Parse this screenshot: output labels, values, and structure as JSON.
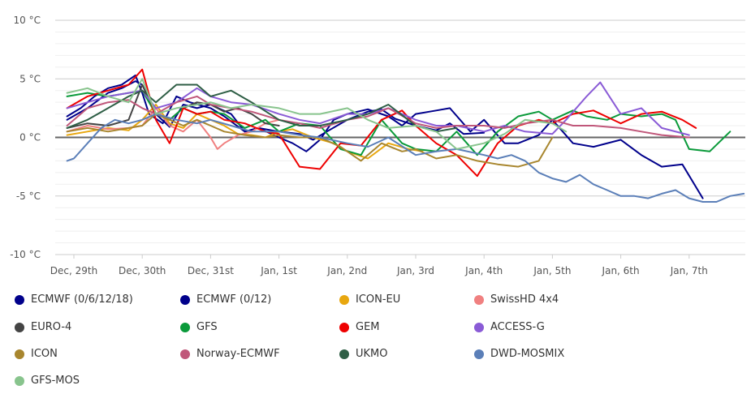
{
  "chart_data": {
    "type": "line",
    "title": "",
    "xlabel": "",
    "ylabel": "",
    "ylim": [
      -10,
      10
    ],
    "y_ticks": [
      "10 °C",
      "5 °C",
      "0 °C",
      "-5 °C",
      "-10 °C"
    ],
    "x_ticks": [
      "Dec, 29th",
      "Dec, 30th",
      "Dec, 31st",
      "Jan, 1st",
      "Jan, 2nd",
      "Jan, 3rd",
      "Jan, 4th",
      "Jan, 5th",
      "Jan, 6th",
      "Jan, 7th"
    ],
    "x_unit": "days from Dec 29th 00:00",
    "grid": true,
    "legend_position": "bottom",
    "series": [
      {
        "name": "ECMWF (0/6/12/18)",
        "color": "#00008b",
        "x": [
          -0.1,
          0.1,
          0.3,
          0.5,
          0.7,
          0.9,
          1.0,
          1.1,
          1.3,
          1.5,
          1.7,
          2.0,
          2.2,
          2.5,
          2.7,
          3.0,
          3.3,
          3.5,
          3.7,
          4.0,
          4.3,
          4.5,
          4.7,
          5.0,
          5.3,
          5.5,
          5.7,
          6.0
        ],
        "y": [
          1.8,
          2.5,
          3.5,
          4.2,
          4.5,
          5.3,
          3.8,
          2.0,
          1.2,
          3.5,
          3.0,
          2.5,
          1.8,
          0.5,
          0.8,
          0.5,
          0.3,
          -0.2,
          0.5,
          1.5,
          2.2,
          2.4,
          1.6,
          1.0,
          0.6,
          1.2,
          0.3,
          0.4
        ]
      },
      {
        "name": "ECMWF (0/12)",
        "color": "#00008b",
        "x": [
          -0.1,
          0.2,
          0.5,
          0.7,
          0.9,
          1.0,
          1.2,
          1.4,
          1.6,
          1.8,
          2.0,
          2.3,
          2.5,
          2.7,
          3.0,
          3.2,
          3.4,
          3.6,
          3.8,
          4.0,
          4.3,
          4.6,
          4.8,
          5.0,
          5.3,
          5.5,
          5.8,
          6.0,
          6.3,
          6.5,
          6.8,
          7.0,
          7.3,
          7.6,
          8.0,
          8.3,
          8.6,
          8.9,
          9.2
        ],
        "y": [
          1.5,
          2.5,
          3.8,
          4.2,
          4.8,
          4.5,
          2.0,
          0.9,
          2.8,
          2.5,
          2.8,
          2.0,
          0.5,
          0.8,
          0.0,
          -0.5,
          -1.2,
          -0.2,
          1.5,
          2.0,
          2.4,
          1.8,
          1.0,
          2.0,
          2.3,
          2.5,
          0.5,
          1.5,
          -0.5,
          -0.5,
          0.2,
          1.5,
          -0.5,
          -0.8,
          -0.2,
          -1.5,
          -2.5,
          -2.3,
          -5.2
        ]
      },
      {
        "name": "ICON-EU",
        "color": "#e8a70f",
        "x": [
          -0.1,
          0.2,
          0.5,
          0.8,
          1.0,
          1.2,
          1.4,
          1.6,
          1.8,
          2.0,
          2.2,
          2.4,
          2.6,
          2.8,
          3.0,
          3.2,
          3.5,
          3.8,
          4.0,
          4.3,
          4.6,
          4.9,
          5.1
        ],
        "y": [
          0.2,
          0.5,
          0.8,
          0.6,
          1.5,
          2.8,
          1.2,
          0.8,
          2.0,
          1.5,
          1.0,
          0.3,
          0.2,
          0.0,
          0.5,
          0.7,
          0.0,
          -0.5,
          -1.2,
          -1.8,
          -0.5,
          -1.0,
          -1.2
        ]
      },
      {
        "name": "SwissHD 4x4",
        "color": "#f08080",
        "x": [
          -0.1,
          0.2,
          0.5,
          0.8,
          1.0,
          1.2,
          1.4,
          1.6,
          1.8,
          2.0,
          2.1,
          2.2,
          2.4,
          2.6,
          2.8,
          3.0
        ],
        "y": [
          0.5,
          1.0,
          0.7,
          0.8,
          1.0,
          2.5,
          1.0,
          0.5,
          1.5,
          0.0,
          -1.0,
          -0.5,
          0.2,
          0.5,
          1.2,
          1.5
        ]
      },
      {
        "name": "EURO-4",
        "color": "#444444",
        "x": [
          -0.1,
          0.2,
          0.5,
          0.8,
          1.0,
          1.2,
          1.4,
          1.6,
          1.8,
          2.0,
          2.2,
          2.4,
          2.6,
          2.8,
          3.0
        ],
        "y": [
          0.8,
          1.2,
          1.0,
          1.5,
          4.5,
          2.0,
          1.5,
          2.5,
          3.0,
          2.8,
          2.2,
          2.5,
          2.0,
          1.2,
          1.0
        ]
      },
      {
        "name": "GFS",
        "color": "#0a9a3a",
        "x": [
          -0.1,
          0.2,
          0.5,
          0.8,
          1.0,
          1.2,
          1.4,
          1.6,
          1.8,
          2.0,
          2.2,
          2.5,
          2.8,
          3.0,
          3.3,
          3.6,
          3.9,
          4.2,
          4.5,
          4.8,
          5.0,
          5.3,
          5.6,
          5.9,
          6.2,
          6.5,
          6.8,
          7.0,
          7.3,
          7.5,
          7.8,
          8.0,
          8.3,
          8.6,
          8.8,
          9.0,
          9.3,
          9.6
        ],
        "y": [
          3.5,
          3.8,
          3.5,
          3.8,
          4.0,
          2.0,
          1.5,
          2.5,
          2.0,
          2.2,
          2.0,
          0.8,
          1.5,
          0.5,
          1.2,
          1.0,
          -1.0,
          -1.5,
          1.5,
          -0.5,
          -1.0,
          -1.2,
          0.5,
          -1.5,
          0.5,
          1.8,
          2.2,
          1.5,
          2.3,
          1.8,
          1.5,
          2.0,
          1.8,
          2.0,
          1.5,
          -1.0,
          -1.2,
          0.5
        ]
      },
      {
        "name": "GEM",
        "color": "#ee0000",
        "x": [
          -0.1,
          0.2,
          0.5,
          0.8,
          1.0,
          1.2,
          1.4,
          1.6,
          1.8,
          2.0,
          2.2,
          2.5,
          2.8,
          3.0,
          3.3,
          3.6,
          3.9,
          4.2,
          4.5,
          4.8,
          5.0,
          5.3,
          5.6,
          5.9,
          6.2,
          6.5,
          6.8,
          7.0,
          7.3,
          7.6,
          8.0,
          8.3,
          8.6,
          8.9,
          9.1
        ],
        "y": [
          2.5,
          3.5,
          4.0,
          4.5,
          5.8,
          1.5,
          -0.5,
          2.5,
          2.0,
          2.2,
          1.5,
          1.2,
          0.5,
          0.3,
          -2.5,
          -2.7,
          -0.5,
          -0.7,
          1.5,
          2.3,
          1.0,
          -0.5,
          -1.5,
          -3.3,
          -0.5,
          1.0,
          1.5,
          1.2,
          2.0,
          2.3,
          1.2,
          2.0,
          2.2,
          1.5,
          0.8
        ]
      },
      {
        "name": "ACCESS-G",
        "color": "#8a5bd6",
        "x": [
          -0.1,
          0.2,
          0.5,
          0.8,
          1.0,
          1.2,
          1.5,
          1.8,
          2.0,
          2.3,
          2.6,
          3.0,
          3.3,
          3.6,
          4.0,
          4.3,
          4.6,
          5.0,
          5.3,
          5.6,
          6.0,
          6.3,
          6.6,
          7.0,
          7.2,
          7.5,
          7.7,
          8.0,
          8.3,
          8.6,
          9.0
        ],
        "y": [
          2.5,
          3.0,
          3.5,
          3.8,
          4.0,
          2.5,
          3.0,
          4.2,
          3.5,
          3.0,
          2.8,
          2.0,
          1.5,
          1.2,
          2.0,
          2.0,
          2.5,
          1.5,
          1.0,
          1.0,
          0.5,
          1.0,
          0.5,
          0.3,
          1.5,
          3.5,
          4.7,
          2.0,
          2.5,
          0.8,
          0.2
        ]
      },
      {
        "name": "ICON",
        "color": "#a8862e",
        "x": [
          -0.1,
          0.2,
          0.5,
          0.8,
          1.0,
          1.2,
          1.4,
          1.6,
          1.8,
          2.0,
          2.2,
          2.5,
          2.8,
          3.0,
          3.3,
          3.6,
          3.9,
          4.2,
          4.5,
          4.8,
          5.0,
          5.3,
          5.6,
          5.9,
          6.2,
          6.5,
          6.8,
          7.0
        ],
        "y": [
          0.5,
          0.8,
          0.5,
          0.8,
          1.0,
          2.0,
          1.5,
          1.0,
          1.5,
          1.0,
          0.5,
          0.2,
          0.0,
          0.2,
          0.0,
          0.0,
          -0.8,
          -2.0,
          -0.5,
          -1.2,
          -1.0,
          -1.8,
          -1.5,
          -2.0,
          -2.3,
          -2.5,
          -2.0,
          0.0
        ]
      },
      {
        "name": "Norway-ECMWF",
        "color": "#c0577a",
        "x": [
          -0.1,
          0.2,
          0.5,
          0.8,
          1.0,
          1.2,
          1.5,
          1.8,
          2.0,
          2.3,
          2.6,
          3.0,
          3.3,
          3.6,
          4.0,
          4.3,
          4.6,
          5.0,
          5.3,
          5.6,
          6.0,
          6.3,
          6.6,
          7.0,
          7.3,
          7.6,
          8.0,
          8.3,
          8.6,
          9.0
        ],
        "y": [
          1.0,
          2.5,
          3.0,
          3.2,
          2.5,
          2.0,
          3.0,
          3.5,
          2.8,
          2.5,
          2.2,
          1.5,
          1.2,
          0.8,
          1.5,
          1.8,
          2.5,
          1.2,
          0.8,
          1.0,
          1.0,
          0.8,
          1.2,
          1.5,
          1.0,
          1.0,
          0.8,
          0.5,
          0.2,
          0.0
        ]
      },
      {
        "name": "UKMO",
        "color": "#2e5e45",
        "x": [
          -0.1,
          0.2,
          0.5,
          0.8,
          1.0,
          1.2,
          1.5,
          1.8,
          2.0,
          2.3,
          2.6,
          3.0,
          3.3,
          3.6,
          4.0,
          4.3,
          4.6,
          5.0,
          5.3,
          5.6
        ],
        "y": [
          0.8,
          1.5,
          2.5,
          3.5,
          4.0,
          3.0,
          4.5,
          4.5,
          3.5,
          4.0,
          3.0,
          1.5,
          1.0,
          1.0,
          1.5,
          2.0,
          2.8,
          1.0,
          0.5,
          0.8
        ]
      },
      {
        "name": "DWD-MOSMIX",
        "color": "#5b7fb8",
        "x": [
          -0.1,
          0.0,
          0.2,
          0.4,
          0.6,
          0.8,
          1.0,
          1.2,
          1.5,
          1.8,
          2.0,
          2.3,
          2.6,
          3.0,
          3.3,
          3.6,
          4.0,
          4.3,
          4.6,
          5.0,
          5.3,
          5.6,
          6.0,
          6.2,
          6.4,
          6.6,
          6.8,
          7.0,
          7.2,
          7.4,
          7.6,
          7.8,
          8.0,
          8.2,
          8.4,
          8.6,
          8.8,
          9.0,
          9.2,
          9.4,
          9.6,
          9.8
        ],
        "y": [
          -2.0,
          -1.8,
          -0.5,
          0.8,
          1.5,
          1.2,
          1.5,
          2.0,
          1.5,
          1.2,
          1.5,
          1.0,
          0.5,
          0.5,
          0.2,
          0.0,
          -0.5,
          -0.8,
          0.0,
          -1.5,
          -1.2,
          -1.0,
          -1.5,
          -1.8,
          -1.5,
          -2.0,
          -3.0,
          -3.5,
          -3.8,
          -3.2,
          -4.0,
          -4.5,
          -5.0,
          -5.0,
          -5.2,
          -4.8,
          -4.5,
          -5.2,
          -5.5,
          -5.5,
          -5.0,
          -4.8
        ]
      },
      {
        "name": "GFS-MOS",
        "color": "#88c48d",
        "x": [
          -0.1,
          0.2,
          0.5,
          0.8,
          1.0,
          1.2,
          1.5,
          1.8,
          2.0,
          2.3,
          2.6,
          3.0,
          3.3,
          3.6,
          4.0,
          4.3,
          4.6,
          5.0,
          5.3,
          5.6,
          6.0,
          6.3,
          6.6,
          7.0,
          7.2
        ],
        "y": [
          3.8,
          4.2,
          3.5,
          3.0,
          5.0,
          2.0,
          2.5,
          2.8,
          3.0,
          2.5,
          2.8,
          2.5,
          2.0,
          2.0,
          2.5,
          1.5,
          0.8,
          1.0,
          0.5,
          -1.0,
          -0.5,
          0.3,
          1.5,
          1.2,
          0.5
        ]
      }
    ]
  }
}
